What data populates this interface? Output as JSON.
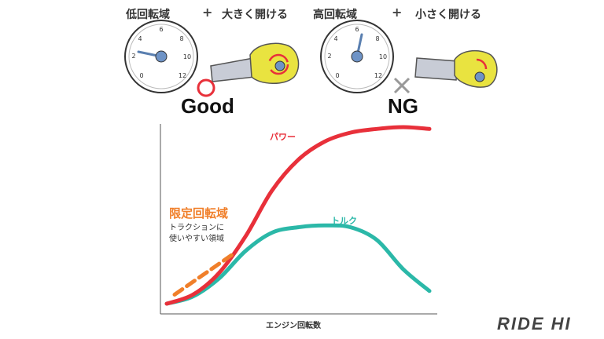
{
  "colors": {
    "power": "#e8303a",
    "torque": "#2bb8a8",
    "zone": "#f07f2a",
    "good": "#e8303a",
    "ng": "#999999",
    "glove": "#e9e340"
  },
  "left_panel": {
    "rpm_label": "低回転域",
    "plus": "+",
    "throttle_label": "大きく開ける",
    "verdict": "Good",
    "verdict_icon": "circle-icon"
  },
  "right_panel": {
    "rpm_label": "高回転域",
    "plus": "+",
    "throttle_label": "小さく開ける",
    "verdict": "NG",
    "verdict_icon": "cross-icon"
  },
  "gauge_ticks": [
    "2",
    "4",
    "6",
    "8",
    "10",
    "12",
    "0"
  ],
  "chart": {
    "power_label": "パワー",
    "torque_label": "トルク",
    "zone_title": "限定回転域",
    "zone_desc_line1": "トラクションに",
    "zone_desc_line2": "使いやすい領域",
    "xlabel": "エンジン回転数"
  },
  "chart_data": {
    "type": "line",
    "title": "",
    "xlabel": "エンジン回転数",
    "ylabel": "",
    "x": [
      0,
      10,
      20,
      30,
      40,
      50,
      60,
      70,
      80,
      90,
      100
    ],
    "series": [
      {
        "name": "パワー",
        "values": [
          3,
          8,
          20,
          40,
          65,
          82,
          92,
          97,
          99,
          100,
          99
        ]
      },
      {
        "name": "トルク",
        "values": [
          3,
          7,
          17,
          32,
          42,
          45,
          46,
          45,
          38,
          22,
          10
        ]
      }
    ],
    "highlight_zone": {
      "name": "限定回転域",
      "x_range": [
        3,
        32
      ]
    }
  },
  "brand": "RIDE HI"
}
